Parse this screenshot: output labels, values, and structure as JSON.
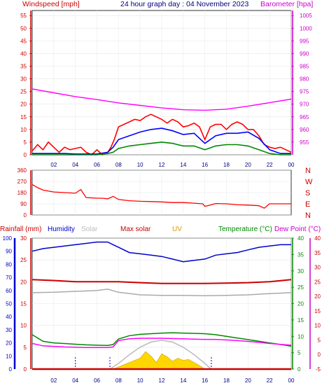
{
  "header": {
    "windspeed_label": "Windspeed [mph]",
    "title": "24 hour graph day : 04 November 2023",
    "barometer_label": "Barometer [hpa]"
  },
  "chart_data": [
    {
      "type": "line",
      "name": "wind-barometer",
      "x_tick_labels": [
        "02",
        "04",
        "06",
        "08",
        "10",
        "12",
        "14",
        "16",
        "18",
        "20",
        "22",
        "00"
      ],
      "left_axis": {
        "label": "Windspeed [mph]",
        "ylim": [
          0,
          57
        ],
        "ticks": [
          0,
          5,
          10,
          15,
          20,
          25,
          30,
          35,
          40,
          45,
          50,
          55
        ]
      },
      "right_axis": {
        "label": "Barometer [hpa]",
        "ylim": [
          950,
          1007
        ],
        "ticks": [
          955,
          960,
          965,
          970,
          975,
          980,
          985,
          990,
          995,
          1000,
          1005
        ]
      },
      "series": [
        {
          "key": "barometer",
          "axis": "right",
          "color": "#ff00ff",
          "x": [
            0,
            2,
            4,
            6,
            8,
            10,
            12,
            14,
            16,
            18,
            20,
            22,
            24
          ],
          "y": [
            976,
            974.5,
            973,
            971.8,
            970.5,
            969.5,
            968.5,
            967.8,
            967.6,
            968,
            969.2,
            970.6,
            972
          ]
        },
        {
          "key": "gust",
          "axis": "left",
          "color": "#ff0000",
          "x": [
            0,
            0.5,
            1,
            1.5,
            2,
            2.5,
            3,
            3.5,
            4,
            4.5,
            5,
            5.5,
            6,
            6.5,
            7,
            7.3,
            7.6,
            8,
            8.5,
            9,
            9.5,
            10,
            10.5,
            11,
            11.5,
            12,
            12.5,
            13,
            13.5,
            14,
            14.5,
            15,
            15.5,
            16,
            16.5,
            17,
            17.5,
            18,
            18.5,
            19,
            19.5,
            20,
            20.5,
            21,
            21.5,
            22,
            22.5,
            23,
            23.5,
            24
          ],
          "y": [
            1.5,
            4,
            2,
            5,
            3,
            1,
            3,
            2,
            2.5,
            3,
            1,
            0,
            2,
            0,
            1,
            3,
            6,
            11,
            12,
            13,
            14,
            13.5,
            15,
            16,
            15,
            14,
            12.5,
            14,
            13,
            11,
            11.5,
            12.5,
            11,
            6,
            11,
            12,
            12,
            10,
            12,
            13,
            12,
            10,
            10,
            7.5,
            4,
            3,
            2.5,
            3,
            2,
            1
          ]
        },
        {
          "key": "avg_wind",
          "axis": "left",
          "color": "#0000ff",
          "x": [
            0,
            1,
            2,
            3,
            4,
            5,
            6,
            7,
            7.5,
            8,
            9,
            10,
            11,
            12,
            13,
            14,
            15,
            16,
            17,
            18,
            19,
            20,
            21,
            22,
            23,
            24
          ],
          "y": [
            0.5,
            0.5,
            0.5,
            0.5,
            0.3,
            0.3,
            0.3,
            1,
            3,
            6,
            7.5,
            9,
            10,
            10.5,
            9.5,
            8,
            8.5,
            4.5,
            7.5,
            8.5,
            8.5,
            9,
            6.5,
            2,
            0.5,
            0.5
          ]
        },
        {
          "key": "wind_direction_avg",
          "axis": "left",
          "color": "#008800",
          "x": [
            0,
            1,
            2,
            3,
            4,
            5,
            6,
            7,
            7.5,
            8,
            9,
            10,
            11,
            12,
            13,
            14,
            15,
            16,
            17,
            18,
            19,
            20,
            21,
            22,
            23,
            24
          ],
          "y": [
            0,
            0,
            0,
            0,
            0,
            0,
            0,
            0.5,
            1,
            2.5,
            3.5,
            4,
            4.5,
            5,
            4.5,
            3.5,
            3.5,
            2,
            3.5,
            4,
            4,
            3.5,
            2,
            0.5,
            0,
            0
          ]
        }
      ]
    },
    {
      "type": "scatter",
      "name": "wind-direction",
      "x_tick_labels": [],
      "left_axis": {
        "ylim": [
          0,
          360
        ],
        "ticks": [
          0,
          90,
          180,
          270,
          360
        ]
      },
      "compass_labels": [
        "N",
        "W",
        "S",
        "E",
        "N"
      ],
      "series": [
        {
          "key": "direction",
          "color": "#ff0000",
          "x": [
            0,
            0.5,
            1,
            2,
            3,
            4,
            4.5,
            5,
            6,
            6.5,
            7,
            7.5,
            8,
            9,
            10,
            11,
            12,
            13,
            14,
            15,
            15.8,
            16,
            16.5,
            17,
            18,
            19,
            20,
            21,
            21.5,
            22,
            23,
            24
          ],
          "y": [
            245,
            220,
            200,
            185,
            180,
            175,
            205,
            140,
            135,
            135,
            130,
            150,
            125,
            115,
            110,
            108,
            105,
            100,
            100,
            95,
            90,
            70,
            80,
            92,
            90,
            82,
            80,
            75,
            55,
            90,
            90,
            90
          ]
        }
      ]
    },
    {
      "type": "line",
      "name": "rain-humidity-solar-temp",
      "legend": [
        "Rainfall (mm)",
        "Humidity",
        "Solar",
        "Max solar",
        "UV",
        "Temperature (°C)",
        "Dew Point (°C)"
      ],
      "x_tick_labels": [
        "02",
        "04",
        "06",
        "08",
        "10",
        "12",
        "14",
        "16",
        "18",
        "20",
        "22",
        "00"
      ],
      "axis_rain": {
        "ylim": [
          0,
          30
        ],
        "ticks": [
          0,
          5,
          10,
          15,
          20,
          25,
          30
        ]
      },
      "axis_humidity": {
        "ylim": [
          0,
          100
        ],
        "ticks": [
          0,
          10,
          20,
          30,
          40,
          50,
          60,
          70,
          80,
          90,
          100
        ]
      },
      "axis_temperature": {
        "ylim": [
          0,
          40
        ],
        "ticks": [
          0,
          5,
          10,
          15,
          20,
          25,
          30,
          35,
          40
        ]
      },
      "axis_dewpoint": {
        "ylim": [
          -5,
          40
        ],
        "ticks": [
          -5,
          0,
          5,
          10,
          15,
          20,
          25,
          30,
          35,
          40
        ]
      },
      "series": [
        {
          "key": "humidity",
          "axis": "humidity",
          "color": "#0000cc",
          "x": [
            0,
            1,
            2,
            3,
            4,
            5,
            6,
            7,
            7.5,
            8,
            9,
            10,
            11,
            12,
            13,
            14,
            15,
            16,
            17,
            18,
            19,
            20,
            21,
            22,
            23,
            24
          ],
          "y": [
            90,
            92,
            93,
            94,
            95,
            96,
            97,
            97,
            95,
            93,
            89,
            88,
            87,
            86,
            84,
            82,
            83,
            84,
            87,
            88,
            89,
            91,
            93,
            94,
            95,
            95
          ]
        },
        {
          "key": "max_solar",
          "axis": "rain",
          "color": "#cc0000",
          "x": [
            0,
            2,
            4,
            6,
            8,
            10,
            12,
            14,
            16,
            18,
            20,
            22,
            24
          ],
          "y": [
            20.5,
            20.3,
            20,
            20,
            20,
            19.8,
            19.6,
            19.6,
            19.6,
            19.7,
            19.8,
            20,
            20.5
          ]
        },
        {
          "key": "solar",
          "axis": "rain",
          "color": "#aaaaaa",
          "x": [
            0,
            2,
            4,
            6,
            7,
            8,
            10,
            12,
            14,
            16,
            18,
            20,
            22,
            24
          ],
          "y": [
            17.5,
            17.6,
            17.8,
            18,
            18.3,
            17.6,
            17,
            16.9,
            16.9,
            16.8,
            16.9,
            17,
            17.3,
            17.5
          ]
        },
        {
          "key": "temperature",
          "axis": "temperature",
          "color": "#008800",
          "x": [
            0,
            1,
            2,
            3,
            4,
            5,
            6,
            7,
            7.5,
            8,
            9,
            10,
            11,
            12,
            13,
            14,
            15,
            16,
            17,
            18,
            19,
            20,
            21,
            22,
            23,
            24
          ],
          "y": [
            10.5,
            8.5,
            8,
            7.8,
            7.6,
            7.4,
            7.3,
            7.2,
            7.5,
            9.2,
            10.2,
            10.6,
            10.8,
            11,
            11.1,
            11,
            10.9,
            10.8,
            10.5,
            10,
            9.5,
            9,
            8.5,
            8,
            7.5,
            7
          ]
        },
        {
          "key": "dew_point",
          "axis": "dewpoint",
          "color": "#ff00ff",
          "x": [
            0,
            1,
            2,
            3,
            4,
            5,
            6,
            7,
            7.5,
            8,
            9,
            10,
            11,
            12,
            13,
            14,
            15,
            16,
            17,
            18,
            19,
            20,
            21,
            22,
            23,
            24
          ],
          "y": [
            3.8,
            3,
            2.8,
            2.6,
            2.5,
            2.4,
            2.4,
            2.4,
            2.6,
            4.8,
            5.4,
            5.6,
            5.6,
            5.6,
            5.5,
            5.4,
            5.3,
            5.2,
            5.2,
            5,
            4.8,
            4.5,
            4.2,
            3.8,
            3.5,
            3.2
          ]
        },
        {
          "key": "uv_max_solar_curve",
          "axis": "rain",
          "color": "#bbbbbb",
          "x": [
            7.2,
            8,
            9,
            10,
            11,
            12,
            13,
            14,
            15,
            16,
            16.6
          ],
          "y": [
            0,
            1.3,
            3.3,
            5,
            6.2,
            6.6,
            6.2,
            5,
            3.3,
            1.3,
            0
          ]
        },
        {
          "key": "uv",
          "axis": "rain",
          "color": "#ffd700",
          "x": [
            7.5,
            8,
            8.5,
            9,
            9.5,
            10,
            10.5,
            11,
            11.5,
            12,
            12.5,
            13,
            13.5,
            14,
            14.5,
            15,
            15.5,
            16
          ],
          "y": [
            0,
            0.5,
            1,
            1.5,
            2,
            2.5,
            4,
            3,
            1.5,
            3.5,
            2.8,
            1.8,
            2.5,
            2,
            2.2,
            1.5,
            0.8,
            0
          ]
        },
        {
          "key": "rainfall",
          "axis": "rain",
          "color": "#cc0000",
          "x": [
            0,
            24
          ],
          "y": [
            0,
            0
          ]
        }
      ]
    }
  ]
}
